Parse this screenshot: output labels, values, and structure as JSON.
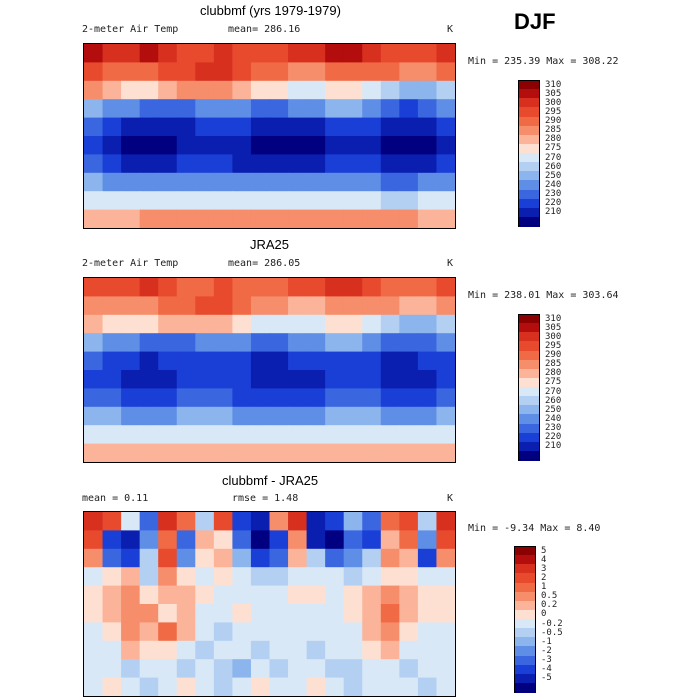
{
  "season": "DJF",
  "panels": [
    {
      "title": "clubbmf (yrs 1979-1979)",
      "left_label": "2-meter Air Temp",
      "mid_label": "mean= 286.16",
      "units": "K",
      "minmax": "Min = 235.39 Max = 308.22"
    },
    {
      "title": "JRA25",
      "left_label": "2-meter Air Temp",
      "mid_label": "mean= 286.05",
      "units": "K",
      "minmax": "Min = 238.01 Max = 303.64"
    },
    {
      "title": "clubbmf - JRA25",
      "left_label": "mean =   0.11",
      "mid_label": "rmse =   1.48",
      "units": "K",
      "minmax": "Min = -9.34 Max =  8.40"
    }
  ],
  "chart_data": [
    {
      "type": "heatmap",
      "title": "clubbmf (yrs 1979-1979)",
      "variable": "2-meter Air Temp",
      "units": "K",
      "mean": 286.16,
      "min": 235.39,
      "max": 308.22,
      "levels": [
        "310",
        "305",
        "300",
        "295",
        "290",
        "285",
        "280",
        "275",
        "270",
        "260",
        "250",
        "240",
        "230",
        "220",
        "210"
      ],
      "colors": [
        "#8b0000",
        "#b40d0d",
        "#d7301f",
        "#e84a2e",
        "#f06a45",
        "#f68d6b",
        "#fbb499",
        "#fde0d2",
        "#d9e8f7",
        "#b3d0f2",
        "#8bb5ec",
        "#5f8ee6",
        "#3a66e0",
        "#1a3fd6",
        "#0a1fb0",
        "#000080"
      ],
      "grid": [
        [
          1,
          2,
          2,
          1,
          2,
          3,
          3,
          2,
          3,
          3,
          3,
          2,
          2,
          1,
          1,
          2,
          3,
          3,
          3,
          2
        ],
        [
          3,
          4,
          4,
          4,
          3,
          3,
          2,
          2,
          3,
          4,
          4,
          5,
          5,
          4,
          4,
          4,
          4,
          5,
          5,
          4
        ],
        [
          5,
          6,
          7,
          7,
          6,
          5,
          5,
          5,
          6,
          7,
          7,
          8,
          8,
          7,
          7,
          8,
          9,
          10,
          10,
          9
        ],
        [
          10,
          11,
          11,
          12,
          12,
          12,
          11,
          11,
          11,
          12,
          12,
          11,
          11,
          10,
          10,
          11,
          12,
          13,
          12,
          11
        ],
        [
          12,
          13,
          14,
          14,
          14,
          14,
          13,
          13,
          13,
          14,
          14,
          14,
          14,
          13,
          13,
          13,
          14,
          14,
          14,
          13
        ],
        [
          13,
          14,
          15,
          15,
          15,
          14,
          14,
          14,
          14,
          15,
          15,
          15,
          15,
          14,
          14,
          14,
          15,
          15,
          15,
          14
        ],
        [
          12,
          13,
          14,
          14,
          14,
          13,
          13,
          13,
          14,
          14,
          14,
          14,
          14,
          13,
          13,
          13,
          14,
          14,
          14,
          13
        ],
        [
          10,
          11,
          11,
          11,
          11,
          11,
          11,
          11,
          11,
          11,
          11,
          11,
          11,
          11,
          11,
          11,
          12,
          12,
          11,
          11
        ],
        [
          8,
          8,
          8,
          8,
          8,
          8,
          8,
          8,
          8,
          8,
          8,
          8,
          8,
          8,
          8,
          8,
          9,
          9,
          8,
          8
        ],
        [
          6,
          6,
          6,
          5,
          5,
          5,
          5,
          5,
          5,
          5,
          5,
          5,
          5,
          5,
          5,
          5,
          5,
          5,
          6,
          6
        ]
      ]
    },
    {
      "type": "heatmap",
      "title": "JRA25",
      "variable": "2-meter Air Temp",
      "units": "K",
      "mean": 286.05,
      "min": 238.01,
      "max": 303.64,
      "levels": [
        "310",
        "305",
        "300",
        "295",
        "290",
        "285",
        "280",
        "275",
        "270",
        "260",
        "250",
        "240",
        "230",
        "220",
        "210"
      ],
      "colors": [
        "#8b0000",
        "#b40d0d",
        "#d7301f",
        "#e84a2e",
        "#f06a45",
        "#f68d6b",
        "#fbb499",
        "#fde0d2",
        "#d9e8f7",
        "#b3d0f2",
        "#8bb5ec",
        "#5f8ee6",
        "#3a66e0",
        "#1a3fd6",
        "#0a1fb0",
        "#000080"
      ],
      "grid": [
        [
          3,
          3,
          3,
          2,
          3,
          4,
          4,
          3,
          4,
          4,
          4,
          3,
          3,
          2,
          2,
          3,
          4,
          4,
          4,
          3
        ],
        [
          5,
          5,
          5,
          5,
          4,
          4,
          3,
          3,
          4,
          5,
          5,
          6,
          6,
          5,
          5,
          5,
          5,
          6,
          6,
          5
        ],
        [
          6,
          7,
          7,
          7,
          6,
          6,
          6,
          6,
          7,
          8,
          8,
          8,
          8,
          7,
          7,
          8,
          9,
          10,
          10,
          9
        ],
        [
          10,
          11,
          11,
          12,
          12,
          12,
          11,
          11,
          11,
          12,
          12,
          11,
          11,
          10,
          10,
          11,
          12,
          12,
          12,
          11
        ],
        [
          12,
          13,
          13,
          14,
          13,
          13,
          13,
          13,
          13,
          14,
          14,
          13,
          13,
          13,
          13,
          13,
          14,
          14,
          13,
          13
        ],
        [
          13,
          13,
          14,
          14,
          14,
          13,
          13,
          13,
          13,
          14,
          14,
          14,
          14,
          13,
          13,
          13,
          14,
          14,
          14,
          13
        ],
        [
          12,
          12,
          13,
          13,
          13,
          12,
          12,
          12,
          13,
          13,
          13,
          13,
          13,
          12,
          12,
          12,
          13,
          13,
          13,
          12
        ],
        [
          10,
          10,
          11,
          11,
          11,
          10,
          10,
          10,
          11,
          11,
          11,
          11,
          11,
          10,
          10,
          10,
          11,
          11,
          11,
          10
        ],
        [
          8,
          8,
          8,
          8,
          8,
          8,
          8,
          8,
          8,
          8,
          8,
          8,
          8,
          8,
          8,
          8,
          8,
          8,
          8,
          8
        ],
        [
          6,
          6,
          6,
          6,
          6,
          6,
          6,
          6,
          6,
          6,
          6,
          6,
          6,
          6,
          6,
          6,
          6,
          6,
          6,
          6
        ]
      ]
    },
    {
      "type": "heatmap",
      "title": "clubbmf - JRA25",
      "units": "K",
      "mean": 0.11,
      "rmse": 1.48,
      "min": -9.34,
      "max": 8.4,
      "levels": [
        "5",
        "4",
        "3",
        "2",
        "1",
        "0.5",
        "0.2",
        "0",
        "-0.2",
        "-0.5",
        "-1",
        "-2",
        "-3",
        "-4",
        "-5"
      ],
      "colors": [
        "#8b0000",
        "#b40d0d",
        "#d7301f",
        "#e84a2e",
        "#f06a45",
        "#f68d6b",
        "#fbb499",
        "#fde0d2",
        "#d9e8f7",
        "#b3d0f2",
        "#8bb5ec",
        "#5f8ee6",
        "#3a66e0",
        "#1a3fd6",
        "#0a1fb0",
        "#000080"
      ],
      "grid": [
        [
          2,
          3,
          8,
          12,
          2,
          4,
          9,
          3,
          13,
          14,
          5,
          2,
          14,
          13,
          10,
          12,
          4,
          3,
          9,
          2
        ],
        [
          3,
          13,
          14,
          11,
          4,
          12,
          6,
          7,
          12,
          15,
          13,
          5,
          14,
          15,
          12,
          13,
          6,
          4,
          11,
          3
        ],
        [
          5,
          12,
          13,
          9,
          3,
          11,
          7,
          6,
          10,
          13,
          12,
          6,
          9,
          12,
          11,
          9,
          5,
          6,
          13,
          5
        ],
        [
          8,
          7,
          6,
          9,
          5,
          7,
          8,
          7,
          8,
          9,
          9,
          8,
          8,
          8,
          9,
          8,
          7,
          7,
          8,
          8
        ],
        [
          7,
          6,
          5,
          7,
          6,
          6,
          7,
          8,
          8,
          8,
          8,
          7,
          7,
          8,
          7,
          6,
          5,
          6,
          7,
          7
        ],
        [
          7,
          6,
          5,
          5,
          7,
          6,
          8,
          8,
          7,
          8,
          8,
          8,
          8,
          8,
          7,
          6,
          4,
          6,
          7,
          7
        ],
        [
          8,
          7,
          5,
          6,
          4,
          6,
          8,
          9,
          8,
          8,
          8,
          8,
          8,
          8,
          8,
          6,
          5,
          7,
          8,
          8
        ],
        [
          8,
          8,
          6,
          7,
          7,
          8,
          9,
          8,
          8,
          9,
          8,
          8,
          9,
          8,
          8,
          7,
          6,
          8,
          8,
          8
        ],
        [
          8,
          8,
          9,
          8,
          8,
          9,
          8,
          9,
          10,
          8,
          9,
          8,
          8,
          9,
          9,
          8,
          8,
          9,
          8,
          8
        ],
        [
          8,
          7,
          8,
          9,
          8,
          7,
          8,
          9,
          8,
          7,
          8,
          8,
          7,
          8,
          9,
          8,
          8,
          8,
          9,
          8
        ]
      ]
    }
  ]
}
